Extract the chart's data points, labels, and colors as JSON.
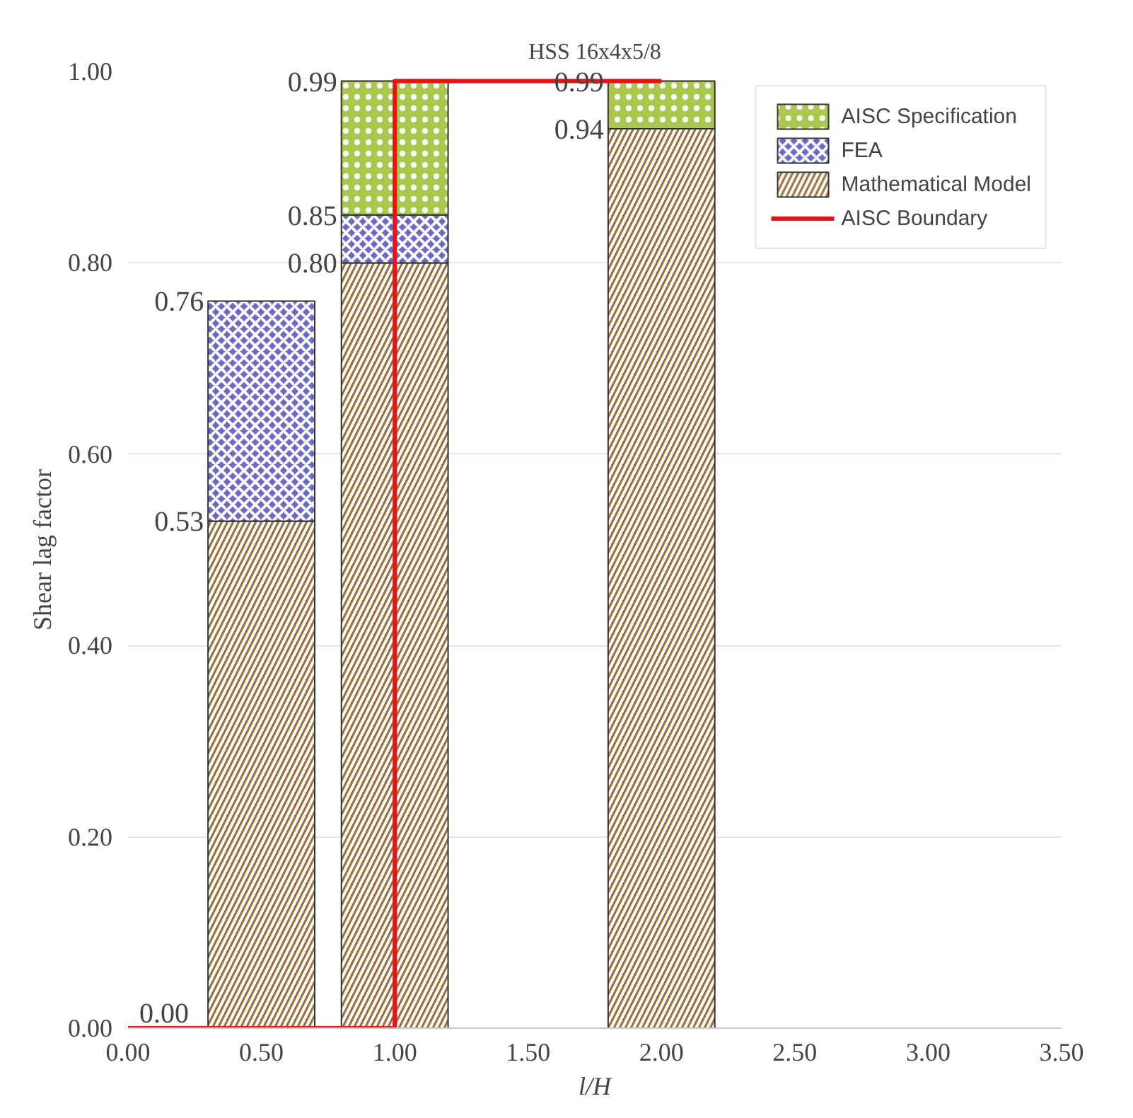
{
  "chart_data": {
    "type": "bar",
    "title": "HSS 16x4x5/8",
    "xlabel": "l/H",
    "ylabel": "Shear lag factor",
    "x": [
      0.5,
      1.0,
      2.0
    ],
    "stacked": true,
    "series": [
      {
        "name": "Mathematical Model",
        "color": "#a0703a",
        "values": [
          0.53,
          0.8,
          0.94
        ]
      },
      {
        "name": "FEA",
        "color": "#6a6acc",
        "values": [
          0.23,
          0.05,
          null
        ]
      },
      {
        "name": "AISC Specification",
        "color": "#a8c850",
        "values": [
          null,
          0.14,
          0.05
        ]
      },
      {
        "name": "AISC Boundary",
        "type": "line",
        "color": "#ee1111",
        "x": [
          0,
          1,
          1,
          2
        ],
        "values": [
          0,
          0,
          0.99,
          0.99
        ]
      }
    ],
    "annotations": [
      {
        "text": "0.53",
        "x": 0.5,
        "y": 0.53
      },
      {
        "text": "0.76",
        "x": 0.5,
        "y": 0.76
      },
      {
        "text": "0.80",
        "x": 1.0,
        "y": 0.8
      },
      {
        "text": "0.85",
        "x": 1.0,
        "y": 0.85
      },
      {
        "text": "0.99",
        "x": 1.0,
        "y": 0.99
      },
      {
        "text": "0.94",
        "x": 2.0,
        "y": 0.94
      },
      {
        "text": "0.99",
        "x": 2.0,
        "y": 0.99
      },
      {
        "text": "0.00",
        "x": 0,
        "y": 0
      }
    ],
    "xlim": [
      0,
      3.5
    ],
    "xticks": [
      {
        "value": 0,
        "label": "0.00"
      },
      {
        "value": 0.5,
        "label": "0.50"
      },
      {
        "value": 1,
        "label": "1.00"
      },
      {
        "value": 1.5,
        "label": "1.50"
      },
      {
        "value": 2,
        "label": "2.00"
      },
      {
        "value": 2.5,
        "label": "2.50"
      },
      {
        "value": 3,
        "label": "3.00"
      },
      {
        "value": 3.5,
        "label": "3.50"
      }
    ],
    "ylim": [
      0,
      1
    ],
    "yticks": [
      {
        "value": 0,
        "label": "0.00"
      },
      {
        "value": 0.2,
        "label": "0.20"
      },
      {
        "value": 0.4,
        "label": "0.40"
      },
      {
        "value": 0.6,
        "label": "0.60"
      },
      {
        "value": 0.8,
        "label": "0.80"
      },
      {
        "value": 1,
        "label": "1.00"
      }
    ],
    "grid": "y",
    "legend": "top right"
  }
}
